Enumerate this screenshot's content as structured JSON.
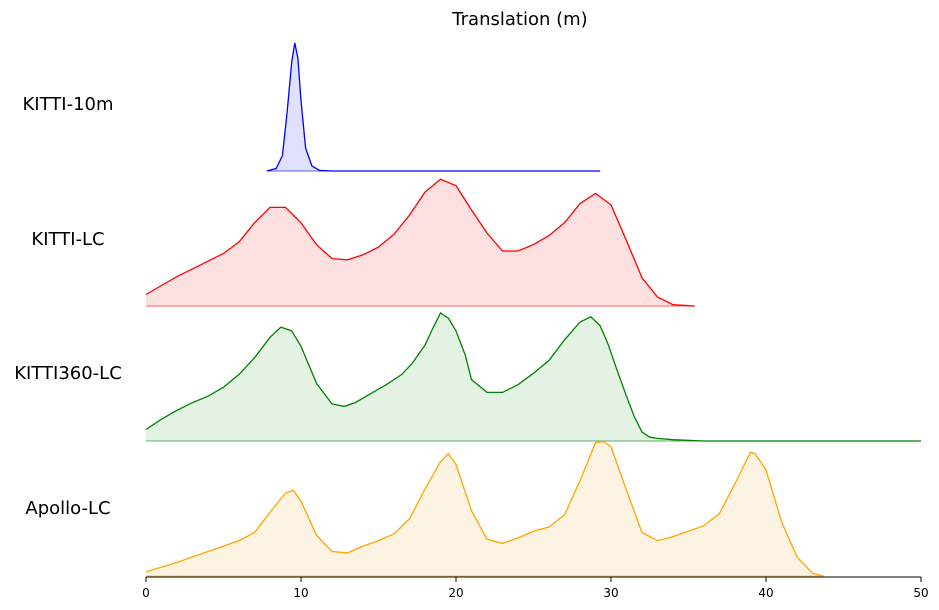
{
  "chart_data": {
    "type": "area",
    "title": "Translation (m)",
    "xlabel": "",
    "ylabel": "",
    "xlim": [
      0,
      50
    ],
    "x_ticks": [
      0,
      10,
      20,
      30,
      40,
      50
    ],
    "grid": false,
    "legend": "none",
    "series": [
      {
        "name": "KITTI-10m",
        "color": "#0000ff",
        "fill": "#e0e0ff",
        "x": [
          7.8,
          8.4,
          8.8,
          9.1,
          9.4,
          9.6,
          9.8,
          10.0,
          10.3,
          10.7,
          11.2,
          12.0,
          15.0,
          20.0,
          25.0,
          28.0,
          29.3
        ],
        "y": [
          0.0,
          0.02,
          0.12,
          0.45,
          0.85,
          1.0,
          0.88,
          0.55,
          0.18,
          0.04,
          0.005,
          0.0,
          0.0,
          0.0,
          0.0,
          0.0,
          0.0
        ]
      },
      {
        "name": "KITTI-LC",
        "color": "#ff0000",
        "fill": "#ffe0e0",
        "x": [
          0,
          1,
          2,
          3,
          4,
          5,
          6,
          7,
          8,
          9,
          10,
          11,
          12,
          13,
          14,
          15,
          16,
          17,
          18,
          19,
          20,
          21,
          22,
          23,
          24,
          25,
          26,
          27,
          28,
          29,
          30,
          31,
          32,
          33,
          34,
          35.4
        ],
        "y": [
          0.09,
          0.16,
          0.23,
          0.29,
          0.35,
          0.41,
          0.5,
          0.65,
          0.77,
          0.77,
          0.65,
          0.48,
          0.37,
          0.36,
          0.4,
          0.46,
          0.56,
          0.71,
          0.89,
          0.99,
          0.94,
          0.75,
          0.57,
          0.43,
          0.43,
          0.48,
          0.55,
          0.65,
          0.8,
          0.88,
          0.79,
          0.51,
          0.22,
          0.07,
          0.01,
          0.0
        ]
      },
      {
        "name": "KITTI360-LC",
        "color": "#008000",
        "fill": "#e4f2e4",
        "x": [
          0,
          1,
          2,
          3,
          4,
          5,
          6,
          7,
          8,
          8.7,
          9.4,
          10,
          11,
          12,
          12.8,
          13.5,
          14.5,
          15.5,
          16.5,
          17.2,
          18,
          18.5,
          19,
          19.5,
          20,
          20.6,
          21,
          22,
          23,
          24,
          25,
          26,
          27,
          28,
          28.7,
          29.3,
          29.8,
          30.4,
          31,
          31.5,
          32,
          32.5,
          33,
          34,
          36,
          40,
          45,
          50
        ],
        "y": [
          0.09,
          0.17,
          0.24,
          0.3,
          0.35,
          0.42,
          0.52,
          0.65,
          0.81,
          0.89,
          0.86,
          0.74,
          0.45,
          0.29,
          0.27,
          0.3,
          0.37,
          0.44,
          0.52,
          0.61,
          0.75,
          0.88,
          1.0,
          0.96,
          0.86,
          0.67,
          0.48,
          0.38,
          0.38,
          0.44,
          0.53,
          0.63,
          0.79,
          0.93,
          0.97,
          0.9,
          0.76,
          0.55,
          0.35,
          0.19,
          0.07,
          0.03,
          0.02,
          0.01,
          0.0,
          0.0,
          0.0,
          0.0
        ]
      },
      {
        "name": "Apollo-LC",
        "color": "#ffa500",
        "fill": "#fdf3e2",
        "x": [
          0,
          2,
          4,
          6,
          7,
          8,
          9,
          9.5,
          10,
          11,
          12,
          13,
          14,
          15,
          16,
          17,
          18,
          19,
          19.5,
          20,
          21,
          22,
          23,
          24,
          25,
          26,
          27,
          28,
          29,
          29.5,
          30,
          31,
          32,
          33,
          34,
          35,
          36,
          37,
          38,
          39,
          39.3,
          40,
          41,
          42,
          43,
          43.7
        ],
        "y": [
          0.03,
          0.1,
          0.18,
          0.26,
          0.32,
          0.47,
          0.61,
          0.63,
          0.55,
          0.3,
          0.18,
          0.17,
          0.22,
          0.26,
          0.31,
          0.42,
          0.64,
          0.84,
          0.9,
          0.82,
          0.48,
          0.27,
          0.24,
          0.28,
          0.33,
          0.36,
          0.45,
          0.7,
          0.98,
          0.99,
          0.95,
          0.63,
          0.32,
          0.26,
          0.29,
          0.33,
          0.37,
          0.46,
          0.68,
          0.91,
          0.9,
          0.78,
          0.4,
          0.14,
          0.02,
          0.0
        ]
      }
    ]
  }
}
